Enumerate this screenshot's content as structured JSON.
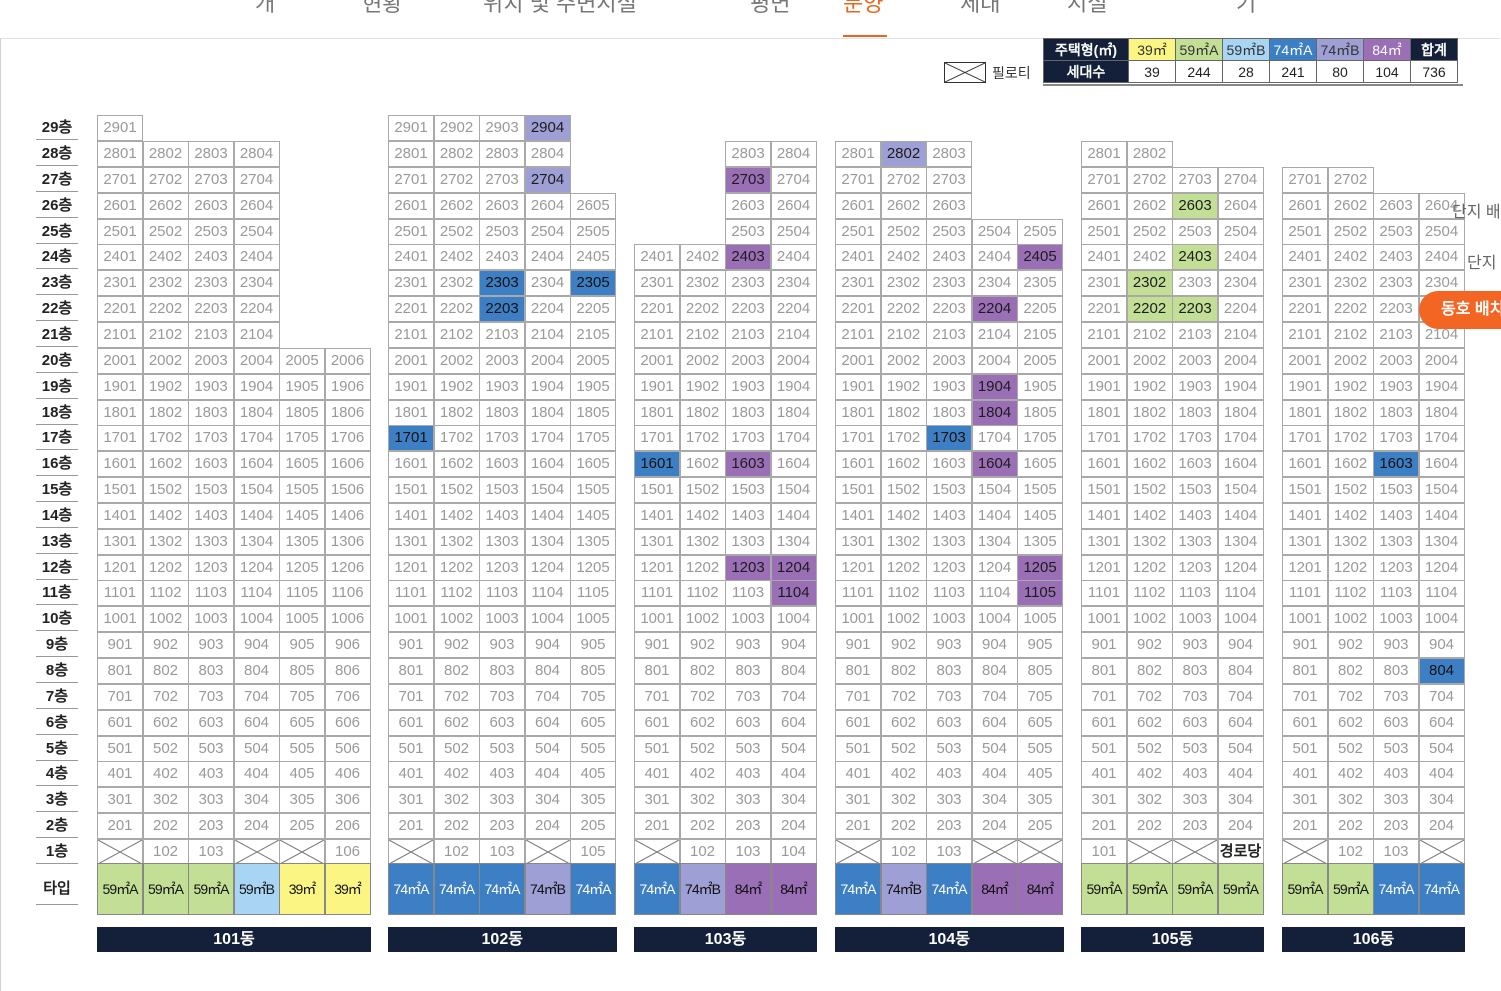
{
  "nav": {
    "tabs": [
      {
        "label": "개"
      },
      {
        "label": "현황"
      },
      {
        "label": "위치 및 주변시설"
      },
      {
        "label": "평면"
      },
      {
        "label": "분양"
      },
      {
        "label": "세대"
      },
      {
        "label": "시설"
      },
      {
        "label": "기"
      }
    ],
    "active_index": 4
  },
  "legend": {
    "header_type_label": "주택형(㎡)",
    "header_count_label": "세대수",
    "types": [
      {
        "name": "39㎡",
        "count": "39",
        "color": "#fbf683"
      },
      {
        "name": "59㎡A",
        "count": "244",
        "color": "#c3df95"
      },
      {
        "name": "59㎡B",
        "count": "28",
        "color": "#a9d5f5"
      },
      {
        "name": "74㎡A",
        "count": "241",
        "color": "#3d7fc4"
      },
      {
        "name": "74㎡B",
        "count": "80",
        "color": "#9e9fd4"
      },
      {
        "name": "84㎡",
        "count": "104",
        "color": "#9b6fb6"
      }
    ],
    "total_label": "합계",
    "total_count": "736",
    "piloti_label": "필로티"
  },
  "row_label": "타입",
  "buildings": [
    {
      "name": "101동",
      "lines": 6,
      "top": [
        29,
        28,
        28,
        28,
        20,
        20
      ],
      "piloti": [
        1,
        4,
        5
      ],
      "special": {},
      "highlight": {},
      "types": [
        "59㎡A",
        "59㎡A",
        "59㎡A",
        "59㎡B",
        "39㎡",
        "39㎡"
      ]
    },
    {
      "name": "102동",
      "lines": 5,
      "top": [
        29,
        29,
        29,
        29,
        26
      ],
      "piloti": [
        1,
        4
      ],
      "special": {},
      "highlight": {
        "2904": "74㎡B",
        "2704": "74㎡B",
        "2303": "74㎡A",
        "2203": "74㎡A",
        "2305": "74㎡A",
        "1701": "74㎡A"
      },
      "types": [
        "74㎡A",
        "74㎡A",
        "74㎡A",
        "74㎡B",
        "74㎡A"
      ]
    },
    {
      "name": "103동",
      "lines": 4,
      "top": [
        24,
        24,
        28,
        28
      ],
      "piloti": [
        1
      ],
      "special": {},
      "highlight": {
        "2703": "84㎡",
        "2403": "84㎡",
        "1601": "74㎡A",
        "1603": "84㎡",
        "1203": "84㎡",
        "1204": "84㎡",
        "1104": "84㎡"
      },
      "types": [
        "74㎡A",
        "74㎡B",
        "84㎡",
        "84㎡"
      ]
    },
    {
      "name": "104동",
      "lines": 5,
      "top": [
        28,
        28,
        28,
        25,
        25
      ],
      "piloti": [
        1,
        4,
        5
      ],
      "special": {},
      "highlight": {
        "2802": "74㎡B",
        "2405": "84㎡",
        "2204": "84㎡",
        "1904": "84㎡",
        "1804": "84㎡",
        "1703": "74㎡A",
        "1604": "84㎡",
        "1205": "84㎡",
        "1105": "84㎡"
      },
      "types": [
        "74㎡A",
        "74㎡B",
        "74㎡A",
        "84㎡",
        "84㎡"
      ]
    },
    {
      "name": "105동",
      "lines": 4,
      "top": [
        28,
        28,
        27,
        27
      ],
      "piloti": [
        2,
        3
      ],
      "special": {
        "104": "경로당"
      },
      "highlight": {
        "2603": "59㎡A",
        "2403": "59㎡A",
        "2302": "59㎡A",
        "2202": "59㎡A",
        "2203": "59㎡A"
      },
      "types": [
        "59㎡A",
        "59㎡A",
        "59㎡A",
        "59㎡A"
      ]
    },
    {
      "name": "106동",
      "lines": 4,
      "top": [
        27,
        27,
        26,
        26
      ],
      "piloti": [
        1,
        4
      ],
      "special": {},
      "highlight": {
        "1603": "74㎡A",
        "804": "74㎡A"
      },
      "types": [
        "59㎡A",
        "59㎡A",
        "74㎡A",
        "74㎡A"
      ]
    }
  ],
  "side_text_1": "단지 배",
  "side_text_2": "단지",
  "floating_button": "동호 배치"
}
